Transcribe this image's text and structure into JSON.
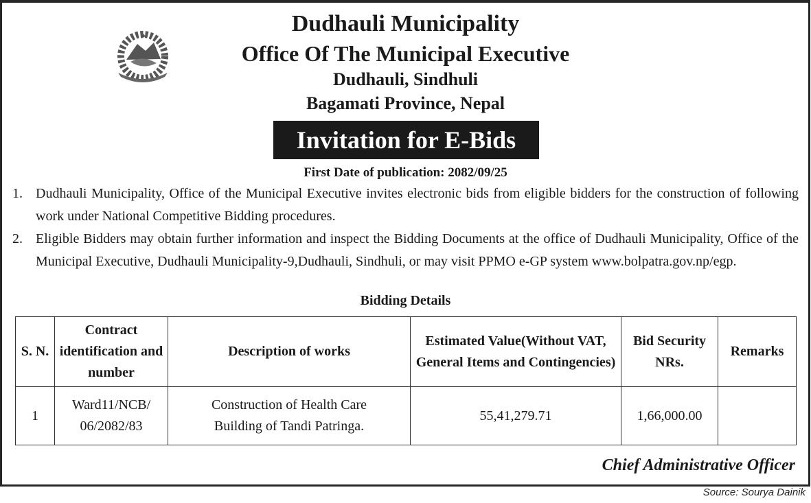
{
  "header": {
    "org": "Dudhauli Municipality",
    "office": "Office Of The Municipal Executive",
    "location": "Dudhauli, Sindhuli",
    "province": "Bagamati Province, Nepal",
    "notice_title": "Invitation for E-Bids",
    "publication": "First Date of publication: 2082/09/25"
  },
  "paragraphs": [
    {
      "num": "1.",
      "text": "Dudhauli Municipality, Office of the Municipal Executive invites electronic bids from eligible bidders for the construction of following work under National Competitive Bidding procedures."
    },
    {
      "num": "2.",
      "text": "Eligible Bidders may obtain further information and inspect the Bidding Documents at the office of Dudhauli Municipality, Office of the Municipal Executive, Dudhauli Municipality-9,Dudhauli, Sindhuli, or may visit PPMO e-GP system www.bolpatra.gov.np/egp."
    }
  ],
  "table": {
    "title": "Bidding Details",
    "headers": [
      "S. N.",
      "Contract identification and number",
      "Description of works",
      "Estimated Value(Without VAT, General Items and Contingencies)",
      "Bid Security NRs.",
      "Remarks"
    ],
    "rows": [
      [
        "1",
        "Ward11/NCB/ 06/2082/83",
        "Construction of Health Care Building of Tandi Patringa.",
        "55,41,279.71",
        "1,66,000.00",
        ""
      ]
    ]
  },
  "signature": "Chief Administrative Officer",
  "source": "Source: Sourya Dainik"
}
